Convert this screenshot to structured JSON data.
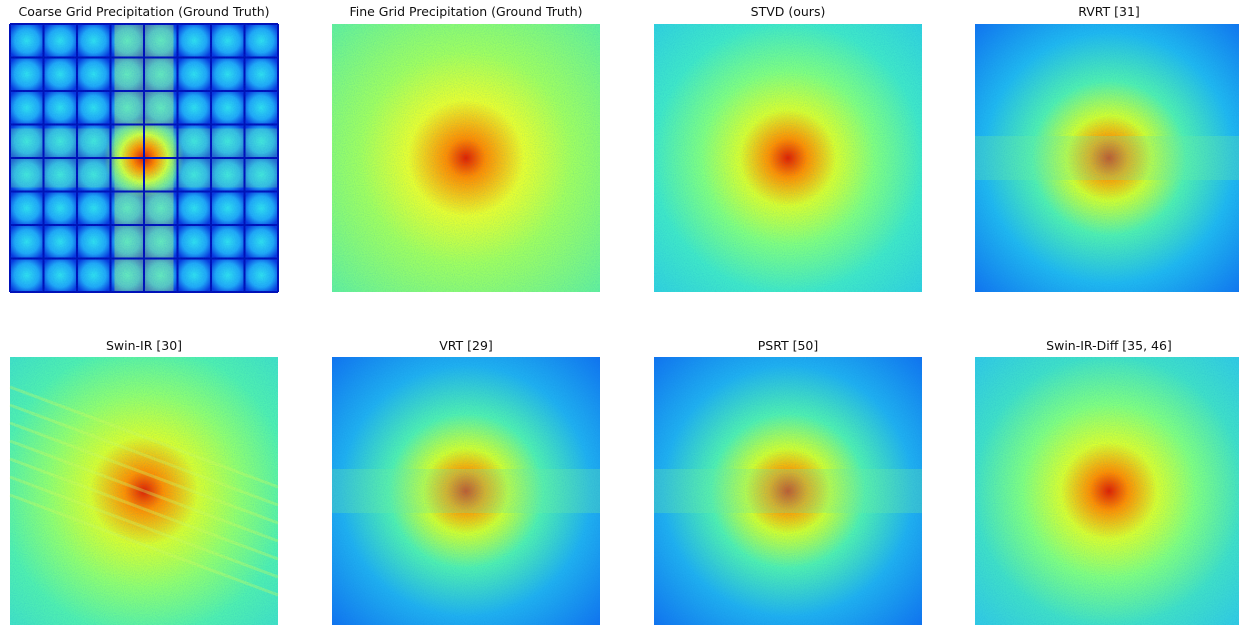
{
  "panels": [
    {
      "title": "Coarse Grid Precipitation (Ground Truth)"
    },
    {
      "title": "Fine Grid Precipitation (Ground Truth)"
    },
    {
      "title": "STVD (ours)"
    },
    {
      "title": "RVRT [31]"
    },
    {
      "title": "Swin-IR [30]"
    },
    {
      "title": "VRT [29]"
    },
    {
      "title": "PSRT [50]"
    },
    {
      "title": "Swin-IR-Diff [35, 46]"
    }
  ]
}
